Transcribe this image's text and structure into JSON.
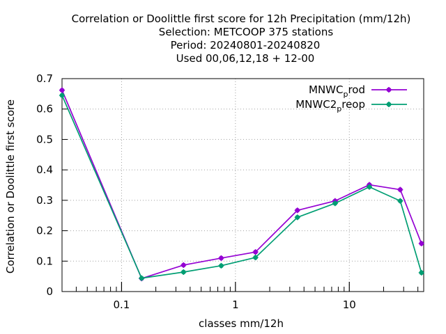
{
  "chart_data": {
    "type": "line",
    "title_lines": [
      "Correlation or Doolittle first score  for 12h Precipitation (mm/12h)",
      "Selection: METCOOP    375 stations",
      "Period: 20240801-20240820",
      "Used  00,06,12,18 + 12-00"
    ],
    "xlabel": "classes mm/12h",
    "ylabel": "Correlation or Doolittle first score",
    "x_scale": "log",
    "xlim": [
      0.03,
      45
    ],
    "ylim": [
      0,
      0.7
    ],
    "x_ticks": [
      {
        "value": 0.1,
        "label": "0.1"
      },
      {
        "value": 1,
        "label": "1"
      },
      {
        "value": 10,
        "label": "10"
      }
    ],
    "y_ticks": [
      {
        "value": 0,
        "label": "0"
      },
      {
        "value": 0.1,
        "label": "0.1"
      },
      {
        "value": 0.2,
        "label": "0.2"
      },
      {
        "value": 0.3,
        "label": "0.3"
      },
      {
        "value": 0.4,
        "label": "0.4"
      },
      {
        "value": 0.5,
        "label": "0.5"
      },
      {
        "value": 0.6,
        "label": "0.6"
      },
      {
        "value": 0.7,
        "label": "0.7"
      }
    ],
    "grid": true,
    "legend_position": "top-right",
    "x": [
      0.03,
      0.15,
      0.35,
      0.75,
      1.5,
      3.5,
      7.5,
      15,
      28,
      43
    ],
    "series": [
      {
        "name_main": "MNWC",
        "name_sub": "p",
        "name_tail": "rod",
        "color": "#9400d3",
        "values": [
          0.662,
          0.043,
          0.087,
          0.11,
          0.13,
          0.267,
          0.298,
          0.351,
          0.335,
          0.158
        ]
      },
      {
        "name_main": "MNWC2",
        "name_sub": "p",
        "name_tail": "reop",
        "color": "#009e73",
        "values": [
          0.645,
          0.044,
          0.064,
          0.085,
          0.112,
          0.244,
          0.29,
          0.344,
          0.298,
          0.062
        ]
      }
    ]
  }
}
